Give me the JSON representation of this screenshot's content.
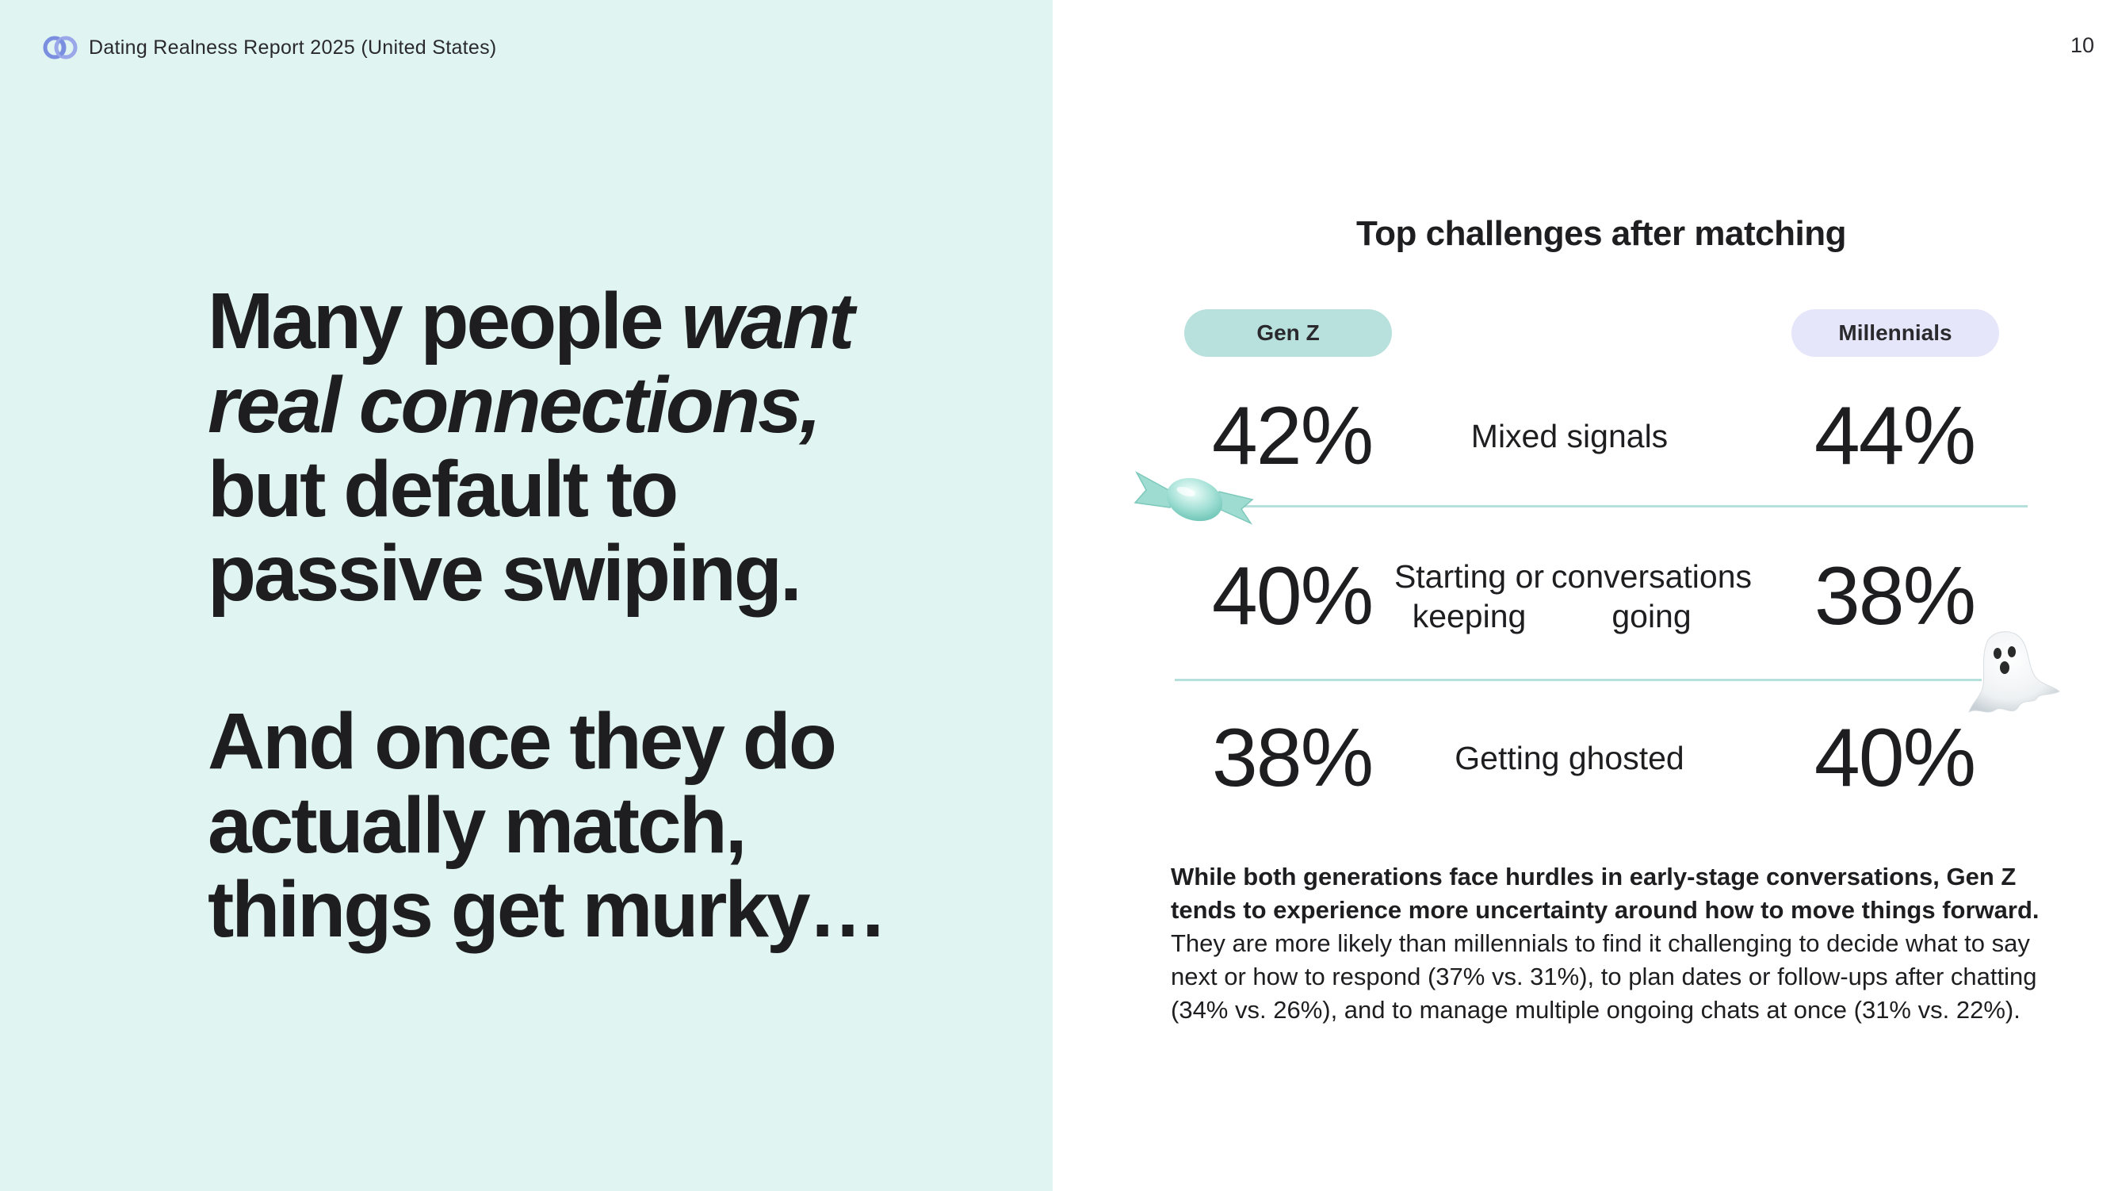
{
  "header": {
    "logo_icon": "linked-rings-logo-icon",
    "title": "Dating Realness Report 2025 (United States)",
    "page_number": "10"
  },
  "headline": {
    "part1": {
      "line1_plain": "Many people ",
      "line1_italic": "want",
      "line2_italic": "real connections,",
      "line3": "but default to",
      "line4": "passive swiping."
    },
    "part2": {
      "line1": "And once they do",
      "line2": "actually match,",
      "line3": "things get murky…"
    }
  },
  "chart_data": {
    "type": "table",
    "title": "Top challenges after matching",
    "columns": [
      "Gen Z",
      "Millennials"
    ],
    "rows": [
      {
        "label": "Mixed signals",
        "label_lines": [
          "Mixed signals"
        ],
        "gen_z": "42%",
        "millennials": "44%"
      },
      {
        "label": "Starting or keeping conversations going",
        "label_lines": [
          "Starting or keeping",
          "conversations going"
        ],
        "gen_z": "40%",
        "millennials": "38%"
      },
      {
        "label": "Getting ghosted",
        "label_lines": [
          "Getting ghosted"
        ],
        "gen_z": "38%",
        "millennials": "40%"
      }
    ]
  },
  "decorations": {
    "candy_icon": "wrapped-candy-icon",
    "ghost_icon": "ghost-icon",
    "colors": {
      "left_panel": "#e0f4f1",
      "gen_z_pill": "#b8e0dc",
      "millennials_pill": "#e6e6fa",
      "divider": "#b6e0dc",
      "logo": "#7b8fe0"
    }
  },
  "body": {
    "bold": "While both generations face hurdles in early-stage conversations, Gen Z tends to experience more uncertainty around how to move things forward.",
    "regular": " They are more likely than millennials to find it challenging to decide what to say next or how to respond (37% vs. 31%), to plan dates or follow-ups after chatting (34% vs. 26%), and to manage multiple ongoing chats at once (31% vs. 22%)."
  }
}
